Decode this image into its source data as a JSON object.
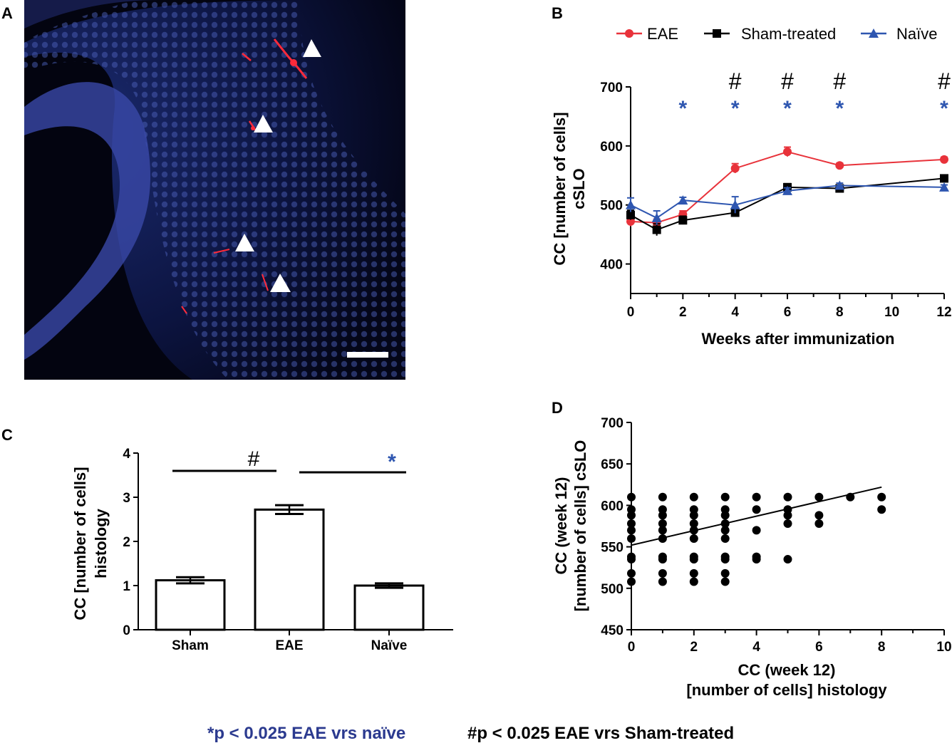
{
  "colors": {
    "eae": "#e8323a",
    "sham": "#000000",
    "naive": "#2e56b0",
    "star_color": "#2e56b0",
    "footnote_blue": "#2b3a8f"
  },
  "panel_a": {
    "label": "A",
    "image_icon": "fluorescence-micrograph",
    "arrowhead_count": 4
  },
  "panel_b": {
    "label": "B",
    "legend": [
      "EAE",
      "Sham-treated",
      "Naïve"
    ],
    "ylabel_line1": "CC [number of cells]",
    "ylabel_line2": "cSLO"
  },
  "panel_c": {
    "label": "C",
    "ylabel_line1": "CC [number of cells]",
    "ylabel_line2": "histology"
  },
  "panel_d": {
    "label": "D",
    "ylabel_line1": "CC (week 12)",
    "ylabel_line2": "[number of cells] cSLO",
    "xlabel_line1": "CC (week 12)",
    "xlabel_line2": "[number of cells] histology"
  },
  "footnote": {
    "star": "*p < 0.025 EAE vrs naïve",
    "hash": "#p < 0.025 EAE vrs Sham-treated"
  },
  "chart_data": [
    {
      "type": "line",
      "panel": "B",
      "title": "",
      "xlabel": "Weeks after immunization",
      "ylabel": "CC [number of cells] cSLO",
      "xlim": [
        0,
        12
      ],
      "ylim": [
        350,
        700
      ],
      "xticks": [
        0,
        2,
        4,
        6,
        8,
        10,
        12
      ],
      "yticks": [
        400,
        500,
        600,
        700
      ],
      "series": [
        {
          "name": "EAE",
          "color": "#e8323a",
          "marker": "circle",
          "x": [
            0,
            1,
            2,
            4,
            6,
            8,
            12
          ],
          "y": [
            472,
            470,
            484,
            562,
            590,
            567,
            577
          ],
          "err": [
            8,
            6,
            6,
            8,
            8,
            4,
            4
          ]
        },
        {
          "name": "Sham-treated",
          "color": "#000000",
          "marker": "square",
          "x": [
            0,
            1,
            2,
            4,
            6,
            8,
            12
          ],
          "y": [
            483,
            458,
            474,
            487,
            530,
            528,
            545
          ],
          "err": [
            8,
            10,
            7,
            6,
            6,
            5,
            5
          ]
        },
        {
          "name": "Naïve",
          "color": "#2e56b0",
          "marker": "triangle",
          "x": [
            0,
            1,
            2,
            4,
            6,
            8,
            12
          ],
          "y": [
            500,
            478,
            508,
            500,
            524,
            533,
            530
          ],
          "err": [
            12,
            12,
            5,
            14,
            5,
            4,
            4
          ]
        }
      ],
      "annotations": [
        {
          "x": 2,
          "text": "*",
          "row": "star"
        },
        {
          "x": 4,
          "text": "*",
          "row": "star"
        },
        {
          "x": 4,
          "text": "#",
          "row": "hash"
        },
        {
          "x": 6,
          "text": "*",
          "row": "star"
        },
        {
          "x": 6,
          "text": "#",
          "row": "hash"
        },
        {
          "x": 8,
          "text": "*",
          "row": "star"
        },
        {
          "x": 8,
          "text": "#",
          "row": "hash"
        },
        {
          "x": 12,
          "text": "*",
          "row": "star"
        },
        {
          "x": 12,
          "text": "#",
          "row": "hash"
        }
      ]
    },
    {
      "type": "bar",
      "panel": "C",
      "title": "",
      "xlabel": "",
      "ylabel": "CC [number of cells] histology",
      "categories": [
        "Sham",
        "EAE",
        "Naïve"
      ],
      "values": [
        1.12,
        2.72,
        1.0
      ],
      "errors": [
        0.07,
        0.1,
        0.05
      ],
      "ylim": [
        0,
        4
      ],
      "yticks": [
        0,
        1,
        2,
        3,
        4
      ],
      "significance": [
        {
          "from": "Sham",
          "to": "EAE",
          "symbol": "#"
        },
        {
          "from": "EAE",
          "to": "Naïve",
          "symbol": "*"
        }
      ]
    },
    {
      "type": "scatter",
      "panel": "D",
      "title": "",
      "xlabel": "CC (week 12) [number of cells] histology",
      "ylabel": "CC (week 12) [number of cells] cSLO",
      "xlim": [
        0,
        10
      ],
      "ylim": [
        450,
        700
      ],
      "xticks": [
        0,
        2,
        4,
        6,
        8,
        10
      ],
      "yticks": [
        450,
        500,
        550,
        600,
        650,
        700
      ],
      "points": [
        [
          0,
          610
        ],
        [
          0,
          595
        ],
        [
          0,
          588
        ],
        [
          0,
          578
        ],
        [
          0,
          570
        ],
        [
          0,
          560
        ],
        [
          0,
          538
        ],
        [
          0,
          535
        ],
        [
          0,
          518
        ],
        [
          0,
          508
        ],
        [
          1,
          610
        ],
        [
          1,
          595
        ],
        [
          1,
          588
        ],
        [
          1,
          578
        ],
        [
          1,
          570
        ],
        [
          1,
          560
        ],
        [
          1,
          538
        ],
        [
          1,
          535
        ],
        [
          1,
          518
        ],
        [
          1,
          508
        ],
        [
          2,
          610
        ],
        [
          2,
          595
        ],
        [
          2,
          588
        ],
        [
          2,
          578
        ],
        [
          2,
          570
        ],
        [
          2,
          560
        ],
        [
          2,
          538
        ],
        [
          2,
          535
        ],
        [
          2,
          518
        ],
        [
          2,
          508
        ],
        [
          3,
          610
        ],
        [
          3,
          595
        ],
        [
          3,
          588
        ],
        [
          3,
          578
        ],
        [
          3,
          570
        ],
        [
          3,
          560
        ],
        [
          3,
          538
        ],
        [
          3,
          535
        ],
        [
          3,
          518
        ],
        [
          3,
          508
        ],
        [
          4,
          610
        ],
        [
          4,
          595
        ],
        [
          4,
          570
        ],
        [
          4,
          538
        ],
        [
          4,
          535
        ],
        [
          5,
          610
        ],
        [
          5,
          595
        ],
        [
          5,
          588
        ],
        [
          5,
          578
        ],
        [
          5,
          535
        ],
        [
          6,
          610
        ],
        [
          6,
          588
        ],
        [
          6,
          578
        ],
        [
          7,
          610
        ],
        [
          8,
          610
        ],
        [
          8,
          595
        ]
      ],
      "regression": {
        "x": [
          0,
          8
        ],
        "y": [
          552,
          622
        ]
      }
    }
  ]
}
